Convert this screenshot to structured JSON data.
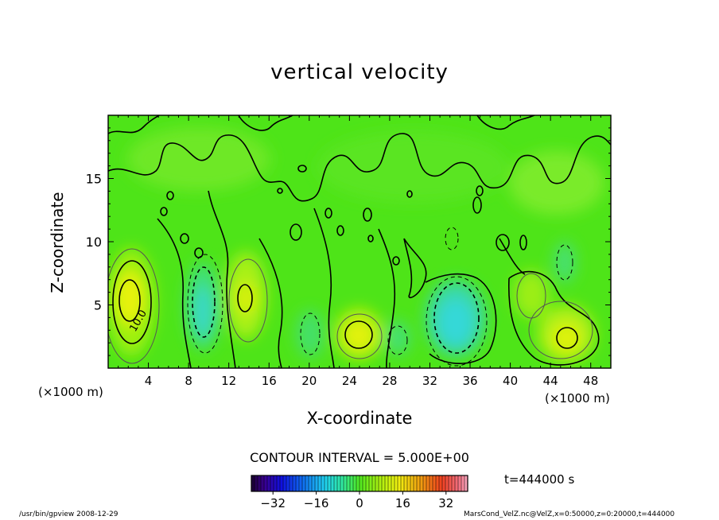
{
  "chart_data": {
    "type": "heatmap",
    "title": "vertical velocity",
    "xlabel": "X-coordinate",
    "ylabel": "Z-coordinate",
    "x_unit_note": "(×1000 m)",
    "x_ticks": [
      4,
      8,
      12,
      16,
      20,
      24,
      28,
      32,
      36,
      40,
      44,
      48
    ],
    "y_ticks": [
      5,
      10,
      15
    ],
    "xlim": [
      0,
      50
    ],
    "ylim": [
      0,
      20
    ],
    "contour_interval_text": "CONTOUR INTERVAL = 5.000E+00",
    "contour_label": "10.0",
    "colorbar": {
      "ticks": [
        -32,
        -16,
        0,
        16,
        32
      ],
      "range": [
        -40,
        40
      ],
      "tick_labels": [
        "−32",
        "−16",
        "0",
        "16",
        "32"
      ]
    },
    "features": [
      {
        "x": 2,
        "z": 5.5,
        "value": 14
      },
      {
        "x": 9.5,
        "z": 5,
        "value": -10
      },
      {
        "x": 13.5,
        "z": 5.5,
        "value": 10
      },
      {
        "x": 25,
        "z": 2.8,
        "value": 10
      },
      {
        "x": 33.5,
        "z": 3.2,
        "value": -11
      },
      {
        "x": 45.5,
        "z": 2.5,
        "value": 10
      },
      {
        "x": 42.5,
        "z": 6,
        "value": 6
      }
    ],
    "time_label": "t=444000 s"
  },
  "footer": {
    "left": "/usr/bin/gpview   2008-12-29",
    "right": "MarsCond_VelZ.nc@VelZ,x=0:50000,z=0:20000,t=444000"
  }
}
